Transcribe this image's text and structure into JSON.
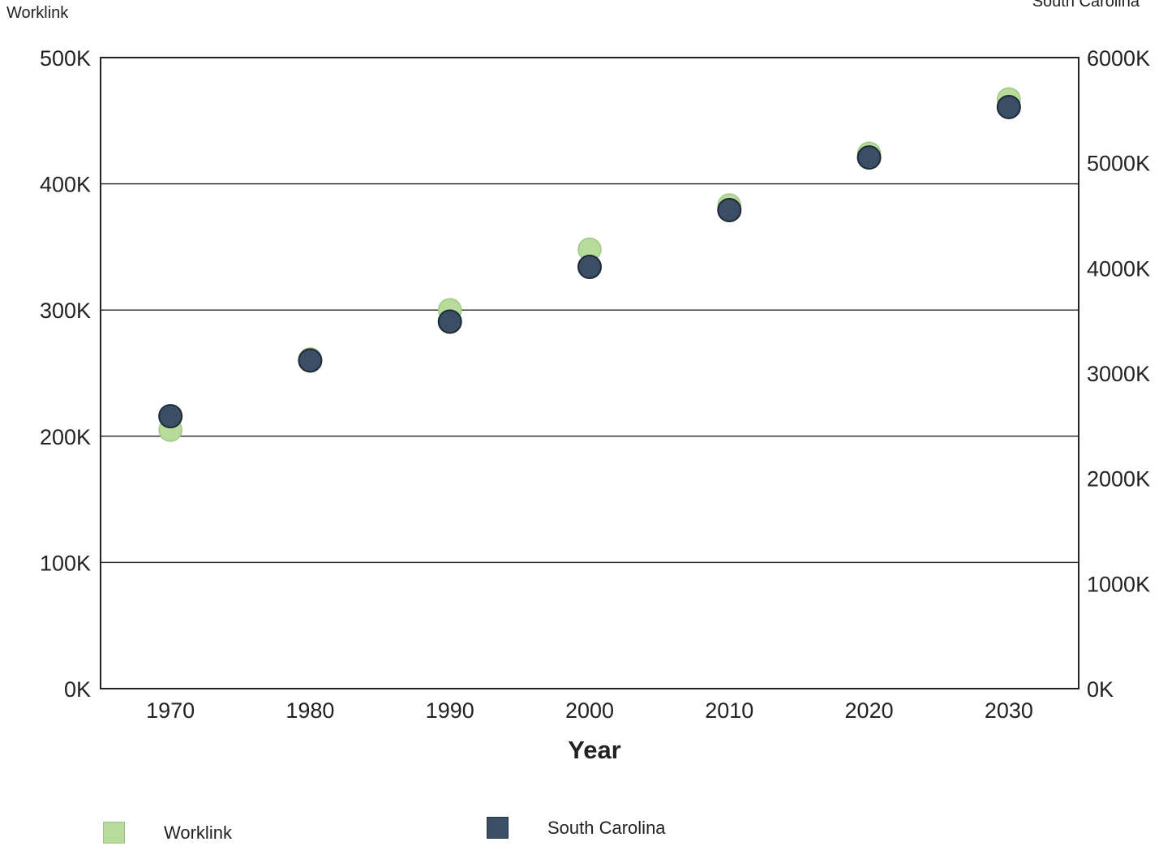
{
  "chart_data": {
    "type": "scatter",
    "left_axis_title": "Worklink",
    "right_axis_title": "South Carolina",
    "xlabel": "Year",
    "x": [
      1970,
      1980,
      1990,
      2000,
      2010,
      2020,
      2030
    ],
    "x_tick_labels": [
      "1970",
      "1980",
      "1990",
      "2000",
      "2010",
      "2020",
      "2030"
    ],
    "y_left_ticks": [
      "0K",
      "100K",
      "200K",
      "300K",
      "400K",
      "500K"
    ],
    "y_right_ticks": [
      "0K",
      "1000K",
      "2000K",
      "3000K",
      "4000K",
      "5000K",
      "6000K"
    ],
    "ylim_left": [
      0,
      500000
    ],
    "ylim_right": [
      0,
      6000000
    ],
    "grid": true,
    "legend_position": "bottom",
    "series": [
      {
        "name": "Worklink",
        "axis": "left",
        "color": "#b7db9a",
        "values": [
          205000,
          261000,
          300000,
          348000,
          383000,
          424000,
          467000
        ]
      },
      {
        "name": "South Carolina",
        "axis": "right",
        "color": "#3a4f66",
        "values": [
          2590000,
          3120000,
          3490000,
          4010000,
          4550000,
          5050000,
          5530000
        ]
      }
    ]
  }
}
